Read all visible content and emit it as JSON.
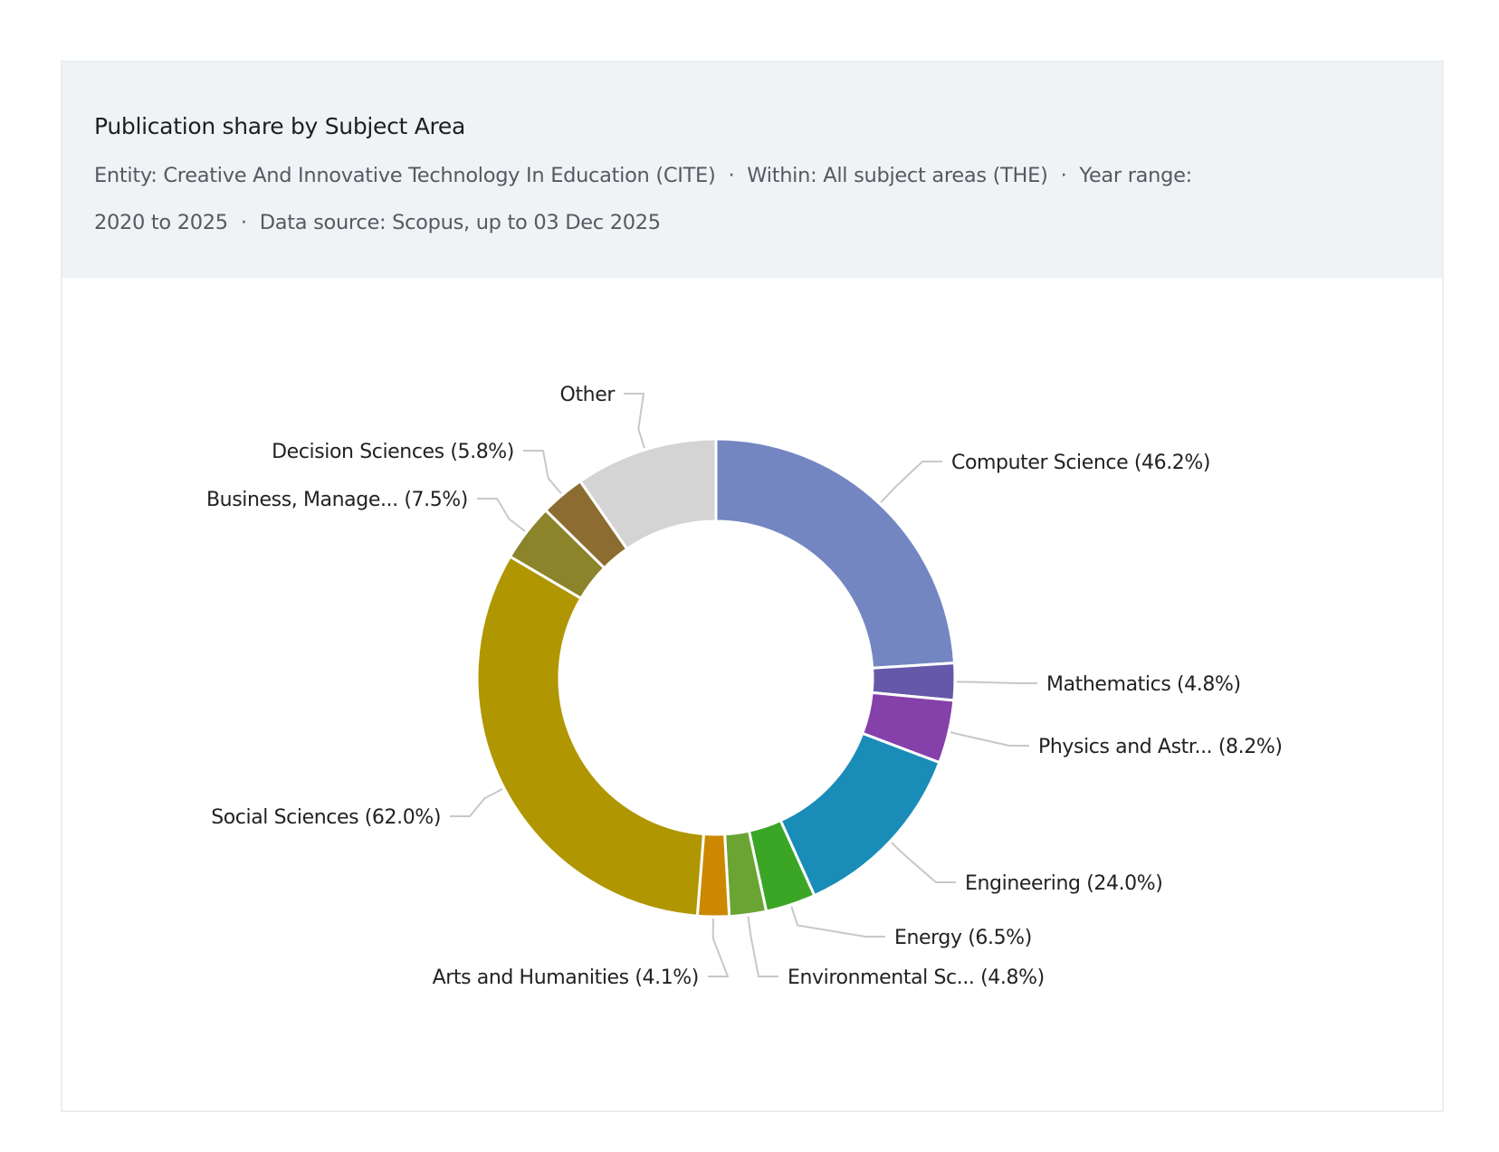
{
  "header": {
    "title": "Publication share by Subject Area",
    "entity": "Entity: Creative And Innovative Technology In Education (CITE)",
    "within": "Within: All subject areas (THE)",
    "year_range_label": "Year range:",
    "year_range": "2020 to 2025",
    "data_source": "Data source: Scopus, up to 03 Dec 2025",
    "separator": "·"
  },
  "chart_data": {
    "type": "pie",
    "donut": true,
    "title": "Publication share by Subject Area",
    "slices": [
      {
        "name": "Computer Science",
        "label": "Computer Science (46.2%)",
        "value": 46.2,
        "color": "#7386c2"
      },
      {
        "name": "Mathematics",
        "label": "Mathematics (4.8%)",
        "value": 4.8,
        "color": "#6658a8"
      },
      {
        "name": "Physics and Astronomy",
        "label": "Physics and Astr... (8.2%)",
        "value": 8.2,
        "color": "#8540a9"
      },
      {
        "name": "Engineering",
        "label": "Engineering (24.0%)",
        "value": 24.0,
        "color": "#1a8cb8"
      },
      {
        "name": "Energy",
        "label": "Energy (6.5%)",
        "value": 6.5,
        "color": "#3ba626"
      },
      {
        "name": "Environmental Science",
        "label": "Environmental Sc... (4.8%)",
        "value": 4.8,
        "color": "#6aa534"
      },
      {
        "name": "Arts and Humanities",
        "label": "Arts and Humanities (4.1%)",
        "value": 4.1,
        "color": "#cc8800"
      },
      {
        "name": "Social Sciences",
        "label": "Social Sciences (62.0%)",
        "value": 62.0,
        "color": "#b09600"
      },
      {
        "name": "Business, Management",
        "label": "Business, Manage... (7.5%)",
        "value": 7.5,
        "color": "#8c842a"
      },
      {
        "name": "Decision Sciences",
        "label": "Decision Sciences (5.8%)",
        "value": 5.8,
        "color": "#8c6c30"
      },
      {
        "name": "Other",
        "label": "Other",
        "value": 18.5,
        "color": "#d4d4d4"
      }
    ],
    "legend": "none"
  }
}
